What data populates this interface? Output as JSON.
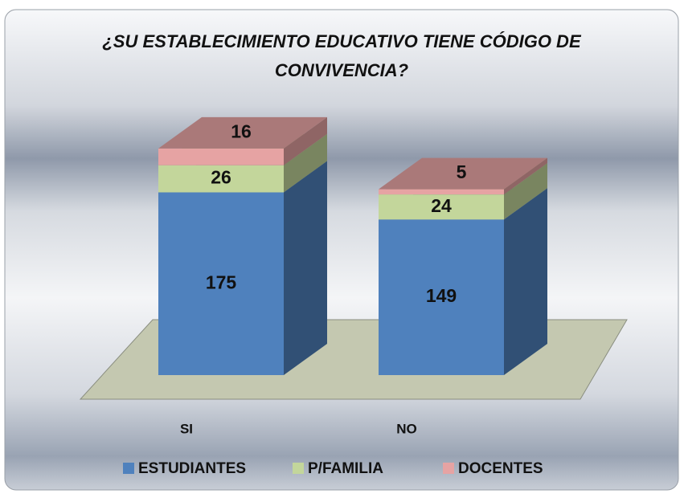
{
  "chart_data": {
    "type": "bar3d_stacked",
    "title": "¿SU ESTABLECIMIENTO EDUCATIVO TIENE CÓDIGO DE CONVIVENCIA?",
    "categories": [
      "SI",
      "NO"
    ],
    "series": [
      {
        "name": "ESTUDIANTES",
        "color": "#4f81bd",
        "values": [
          175,
          149
        ]
      },
      {
        "name": "P/FAMILIA",
        "color": "#c3d69b",
        "values": [
          26,
          24
        ]
      },
      {
        "name": "DOCENTES",
        "color": "#e6a3a3",
        "values": [
          16,
          5
        ]
      }
    ],
    "legend": "bottom"
  }
}
